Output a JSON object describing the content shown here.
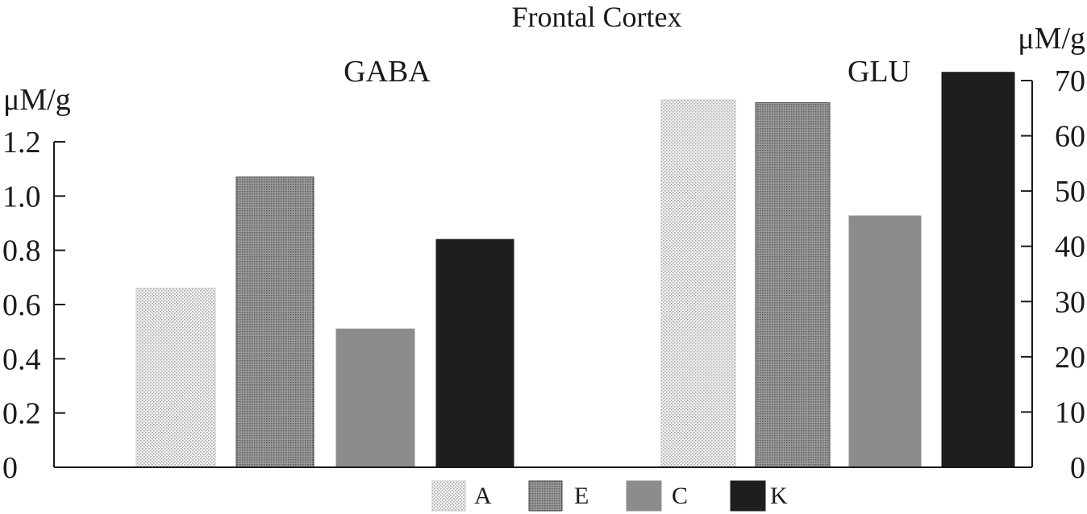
{
  "chart_data": {
    "type": "bar",
    "title": "Frontal Cortex",
    "categories": [
      "GABA",
      "GLU"
    ],
    "left_axis": {
      "unit": "μM/g",
      "ylim": [
        0,
        1.2
      ],
      "ticks": [
        "0",
        "0.2",
        "0.4",
        "0.6",
        "0.8",
        "1.0",
        "1.2"
      ],
      "tick_values": [
        0,
        0.2,
        0.4,
        0.6,
        0.8,
        1.0,
        1.2
      ]
    },
    "right_axis": {
      "unit": "μM/g",
      "ylim": [
        0,
        70
      ],
      "ticks": [
        "0",
        "10",
        "20",
        "30",
        "40",
        "50",
        "60",
        "70"
      ],
      "tick_values": [
        0,
        10,
        20,
        30,
        40,
        50,
        60,
        70
      ]
    },
    "series": [
      {
        "name": "A",
        "pattern": "light-dots",
        "color": "#e6e6e6",
        "values": [
          0.66,
          66.5
        ]
      },
      {
        "name": "E",
        "pattern": "dark-dots",
        "color": "#8a8a8a",
        "values": [
          1.07,
          66
        ]
      },
      {
        "name": "C",
        "pattern": "solid",
        "color": "#8c8c8c",
        "values": [
          0.51,
          45.5
        ]
      },
      {
        "name": "K",
        "pattern": "solid",
        "color": "#1e1e1e",
        "values": [
          0.84,
          71.5
        ]
      }
    ],
    "axis_assignment": {
      "GABA": "left",
      "GLU": "right"
    },
    "grid": false,
    "legend": {
      "placement": "bottom"
    }
  }
}
